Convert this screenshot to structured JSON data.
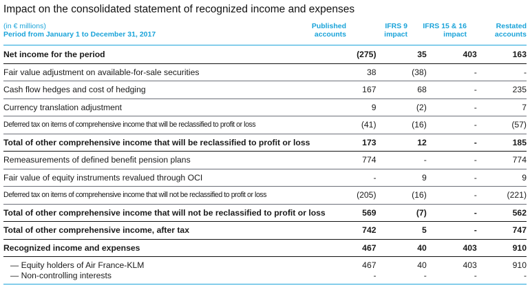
{
  "title": "Impact on the consolidated statement of recognized income and expenses",
  "header": {
    "unit": "(in € millions)",
    "period": "Period from January 1 to December 31, 2017",
    "columns": [
      {
        "line1": "Published",
        "line2": "accounts"
      },
      {
        "line1": "IFRS 9",
        "line2": "impact"
      },
      {
        "line1": "IFRS 15 & 16",
        "line2": "impact"
      },
      {
        "line1": "Restated",
        "line2": "accounts"
      }
    ]
  },
  "colors": {
    "accent": "#1aa3d9",
    "text": "#1a1a1a"
  },
  "rows": [
    {
      "label": "Net income for the period",
      "values": [
        "(275)",
        "35",
        "403",
        "163"
      ],
      "style": "first-bold"
    },
    {
      "label": "Fair value adjustment on available-for-sale securities",
      "values": [
        "38",
        "(38)",
        "-",
        "-"
      ],
      "style": "normal"
    },
    {
      "label": "Cash flow hedges and cost of hedging",
      "values": [
        "167",
        "68",
        "-",
        "235"
      ],
      "style": "normal"
    },
    {
      "label": "Currency translation adjustment",
      "values": [
        "9",
        "(2)",
        "-",
        "7"
      ],
      "style": "normal"
    },
    {
      "label": "Deferred tax on items of comprehensive income that will be reclassified to profit or loss",
      "values": [
        "(41)",
        "(16)",
        "-",
        "(57)"
      ],
      "style": "small"
    },
    {
      "label": "Total of other comprehensive income that will be reclassified to profit or loss",
      "values": [
        "173",
        "12",
        "-",
        "185"
      ],
      "style": "bold"
    },
    {
      "label": "Remeasurements of defined benefit pension plans",
      "values": [
        "774",
        "-",
        "-",
        "774"
      ],
      "style": "normal"
    },
    {
      "label": "Fair value of equity instruments revalued through OCI",
      "values": [
        "-",
        "9",
        "-",
        "9"
      ],
      "style": "normal"
    },
    {
      "label": "Deferred tax on items of comprehensive income that will not be reclassified to profit or loss",
      "values": [
        "(205)",
        "(16)",
        "-",
        "(221)"
      ],
      "style": "small"
    },
    {
      "label": "Total of other comprehensive income that will not be reclassified to profit or loss",
      "values": [
        "569",
        "(7)",
        "-",
        "562"
      ],
      "style": "bold"
    },
    {
      "label": "Total of other comprehensive income, after tax",
      "values": [
        "742",
        "5",
        "-",
        "747"
      ],
      "style": "bold"
    },
    {
      "label": "Recognized income and expenses",
      "values": [
        "467",
        "40",
        "403",
        "910"
      ],
      "style": "bold"
    },
    {
      "label": "— Equity holders of Air France-KLM",
      "values": [
        "467",
        "40",
        "403",
        "910"
      ],
      "style": "sub-first"
    },
    {
      "label": "— Non-controlling interests",
      "values": [
        "-",
        "-",
        "-",
        "-"
      ],
      "style": "sub"
    }
  ]
}
